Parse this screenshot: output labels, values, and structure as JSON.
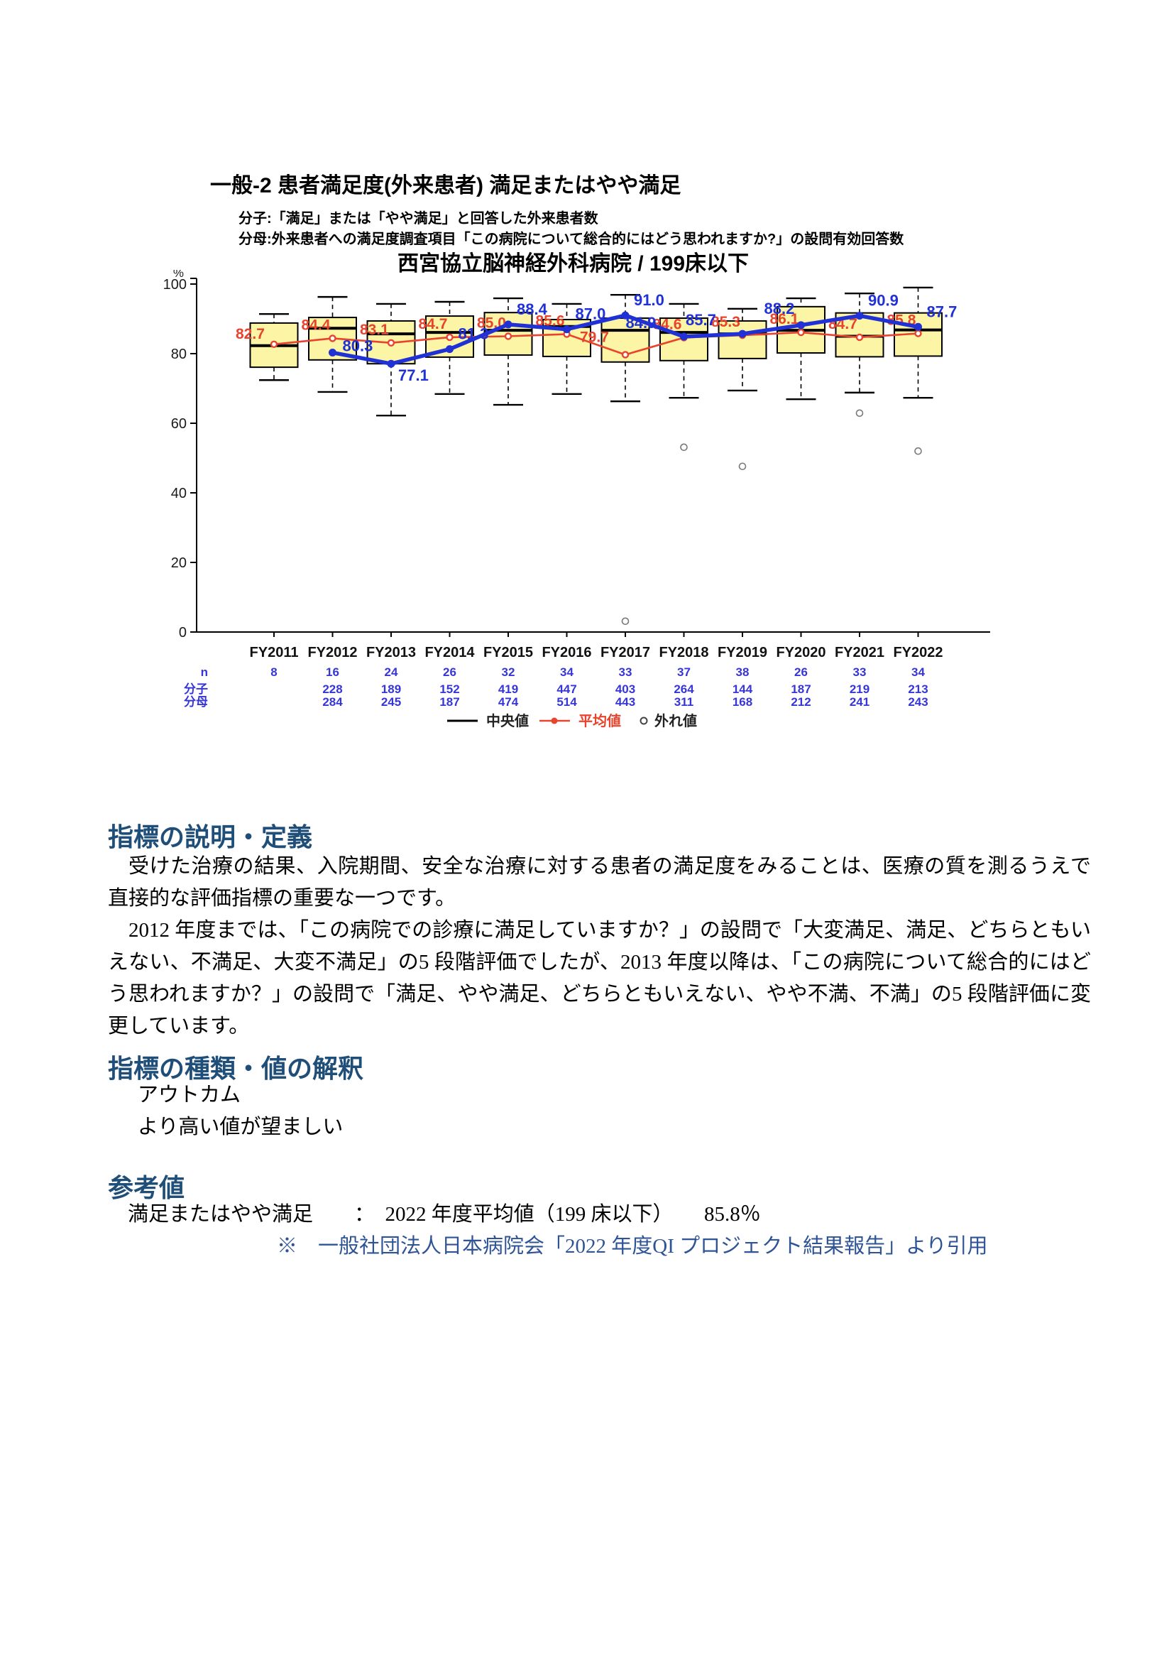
{
  "page": {
    "title": "一般-2 患者満足度(外来患者) 満足またはやや満足",
    "definition_numerator": "分子:「満足」または「やや満足」と回答した外来患者数",
    "definition_denominator": "分母:外来患者への満足度調査項目「この病院について総合的にはどう思われますか?」の設問有効回答数"
  },
  "chart_data": {
    "type": "box+line",
    "title": "西宮協立脳神経外科病院 / 199床以下",
    "unit_label": "%",
    "ylim": [
      0,
      100
    ],
    "yticks": [
      0,
      20,
      40,
      60,
      80,
      100
    ],
    "grid": false,
    "categories": [
      "FY2011",
      "FY2012",
      "FY2013",
      "FY2014",
      "FY2015",
      "FY2016",
      "FY2017",
      "FY2018",
      "FY2019",
      "FY2020",
      "FY2021",
      "FY2022"
    ],
    "boxes": [
      {
        "lo": 72.4,
        "q1": 76.1,
        "med": 82.3,
        "q3": 88.8,
        "hi": 91.4,
        "out": []
      },
      {
        "lo": 69.0,
        "q1": 78.2,
        "med": 87.3,
        "q3": 90.4,
        "hi": 96.3,
        "out": []
      },
      {
        "lo": 62.2,
        "q1": 77.1,
        "med": 85.7,
        "q3": 89.4,
        "hi": 94.3,
        "out": []
      },
      {
        "lo": 68.4,
        "q1": 79.0,
        "med": 86.1,
        "q3": 90.8,
        "hi": 94.9,
        "out": []
      },
      {
        "lo": 65.3,
        "q1": 79.6,
        "med": 86.7,
        "q3": 91.8,
        "hi": 95.9,
        "out": []
      },
      {
        "lo": 68.4,
        "q1": 79.2,
        "med": 87.8,
        "q3": 89.8,
        "hi": 94.3,
        "out": []
      },
      {
        "lo": 66.3,
        "q1": 77.6,
        "med": 86.7,
        "q3": 90.2,
        "hi": 96.9,
        "out": [
          3.1
        ]
      },
      {
        "lo": 67.3,
        "q1": 78.0,
        "med": 86.1,
        "q3": 90.2,
        "hi": 94.3,
        "out": [
          53.1
        ]
      },
      {
        "lo": 69.4,
        "q1": 78.6,
        "med": 85.7,
        "q3": 89.4,
        "hi": 92.9,
        "out": [
          47.6
        ]
      },
      {
        "lo": 66.9,
        "q1": 80.2,
        "med": 86.7,
        "q3": 93.5,
        "hi": 95.9,
        "out": []
      },
      {
        "lo": 68.8,
        "q1": 79.1,
        "med": 85.0,
        "q3": 91.7,
        "hi": 97.3,
        "out": [
          62.9
        ]
      },
      {
        "lo": 67.3,
        "q1": 79.3,
        "med": 86.8,
        "q3": 91.7,
        "hi": 99.0,
        "out": [
          52.0
        ]
      }
    ],
    "series": [
      {
        "name": "平均値",
        "color": "#E8432D",
        "values": [
          82.7,
          84.4,
          83.1,
          84.7,
          85.0,
          85.6,
          79.7,
          84.6,
          85.3,
          86.1,
          84.7,
          85.8
        ]
      },
      {
        "name": "西宮協立脳神経外科病院",
        "color": "#2031D6",
        "values": [
          null,
          80.3,
          77.1,
          81.3,
          88.4,
          87.0,
          91.0,
          84.9,
          85.7,
          88.2,
          90.9,
          87.7
        ]
      }
    ],
    "counts": {
      "rows": [
        {
          "label": "n",
          "values": [
            "8",
            "16",
            "24",
            "26",
            "32",
            "34",
            "33",
            "37",
            "38",
            "26",
            "33",
            "34"
          ]
        },
        {
          "label": "分子",
          "values": [
            "",
            "228",
            "189",
            "152",
            "419",
            "447",
            "403",
            "264",
            "144",
            "187",
            "219",
            "213"
          ]
        },
        {
          "label": "分母",
          "values": [
            "",
            "284",
            "245",
            "187",
            "474",
            "514",
            "443",
            "311",
            "168",
            "212",
            "241",
            "243"
          ]
        }
      ]
    },
    "legend": [
      "中央値",
      "平均値",
      "外れ値"
    ],
    "colors": {
      "box_fill": "#FBF5A5",
      "box_stroke": "#000000",
      "median": "#000000",
      "mean_line": "#E8432D",
      "hospital_line": "#2031D6",
      "counts_text": "#3636D8",
      "outlier_stroke": "#7a7a7a"
    }
  },
  "sections": [
    {
      "heading": "指標の説明・定義",
      "paragraphs": [
        "受けた治療の結果、入院期間、安全な治療に対する患者の満足度をみることは、医療の質を測るうえで直接的な評価指標の重要な一つです。",
        "2012 年度までは、「この病院での診療に満足していますか？」の設問で「大変満足、満足、どちらともいえない、不満足、大変不満足」の5 段階評価でしたが、2013 年度以降は、「この病院について総合的にはどう思われますか？」の設問で「満足、やや満足、どちらともいえない、やや不満、不満」の5 段階評価に変更しています。"
      ]
    },
    {
      "heading": "指標の種類・値の解釈",
      "paragraphs": [
        "アウトカム",
        "より高い値が望ましい"
      ]
    },
    {
      "heading": "参考値",
      "paragraphs": [
        "満足またはやや満足　　：　2022 年度平均値（199 床以下）　　85.8％"
      ],
      "note": "※　一般社団法人日本病院会「2022 年度QI プロジェクト結果報告」より引用"
    }
  ]
}
